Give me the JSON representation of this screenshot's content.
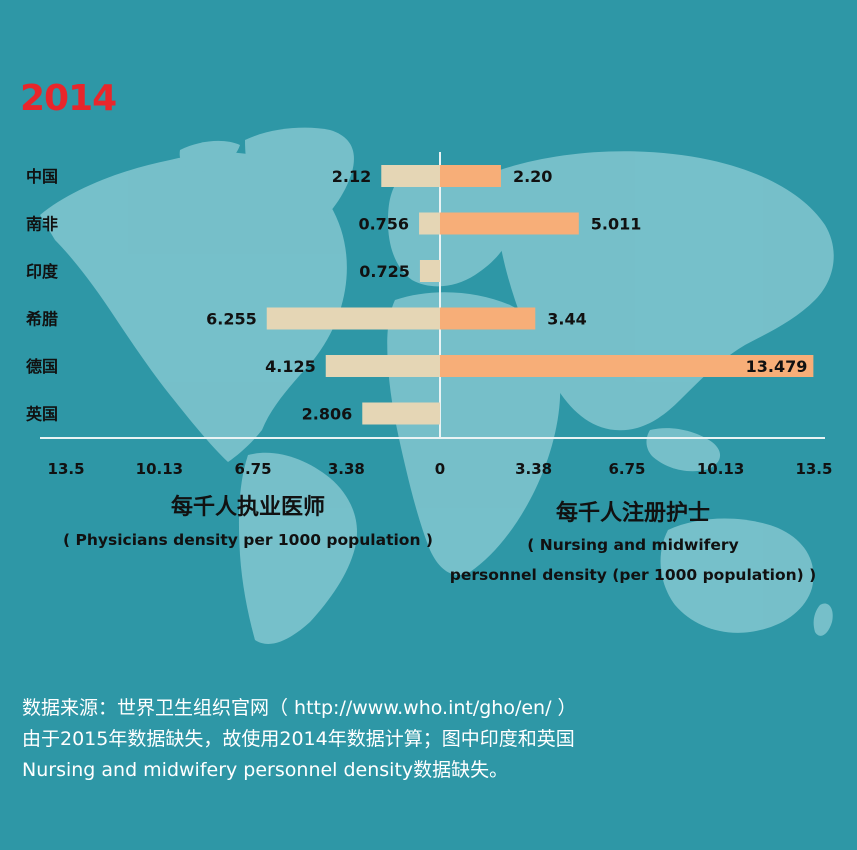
{
  "header": {
    "year": "2014"
  },
  "chart_data": {
    "type": "bar",
    "orientation": "horizontal-diverging",
    "categories": [
      "中国",
      "南非",
      "印度",
      "希腊",
      "德国",
      "英国"
    ],
    "series": [
      {
        "values": [
          2.12,
          0.756,
          0.725,
          6.255,
          4.125,
          2.806
        ],
        "value_labels": [
          "2.12",
          "0.756",
          "0.725",
          "6.255",
          "4.125",
          "2.806"
        ],
        "side": "left",
        "color": "#e5d6b5"
      },
      {
        "values": [
          2.2,
          5.011,
          null,
          3.44,
          13.479,
          null
        ],
        "value_labels": [
          "2.20",
          "5.011",
          "",
          "3.44",
          "13.479",
          ""
        ],
        "side": "right",
        "color": "#f7ae78"
      }
    ],
    "xlim": [
      0,
      13.5
    ],
    "ticks_left": [
      "13.5",
      "10.13",
      "6.75",
      "3.38"
    ],
    "ticks_right": [
      "0",
      "3.38",
      "6.75",
      "10.13",
      "13.5"
    ],
    "left_axis_title": "每千人执业医师",
    "left_axis_subtitle": "( Physicians density per 1000 population )",
    "right_axis_title": "每千人注册护士",
    "right_axis_subtitle_line1": "( Nursing and midwifery",
    "right_axis_subtitle_line2": "personnel density (per 1000 population) )",
    "axis_color": "#e9f3f4",
    "grid": false,
    "legend": "none"
  },
  "footer": {
    "line1": "数据来源：世界卫生组织官网（ http://www.who.int/gho/en/ ）",
    "line2": "由于2015年数据缺失，故使用2014年数据计算；图中印度和英国",
    "line3": "Nursing and midwifery personnel density数据缺失。"
  }
}
